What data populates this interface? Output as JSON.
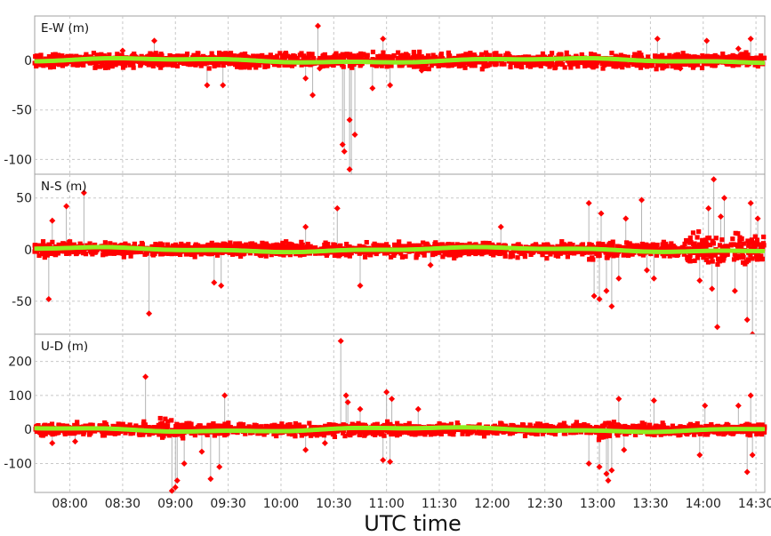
{
  "chart_data": {
    "type": "scatter",
    "xlabel": "UTC time",
    "x_ticks": [
      "08:00",
      "08:30",
      "09:00",
      "09:30",
      "10:00",
      "10:30",
      "11:00",
      "11:30",
      "12:00",
      "12:30",
      "13:00",
      "13:30",
      "14:00",
      "14:30"
    ],
    "x_range": [
      "07:40",
      "14:35"
    ],
    "grid": true,
    "colors": {
      "error_points": "#ff0000",
      "mean_line": "#90ee20",
      "spikes": "#b4b4b4",
      "frame": "#a0a0a0"
    },
    "panels": [
      {
        "label": "E-W (m)",
        "ylim": [
          -115,
          45
        ],
        "y_ticks": [
          "0",
          "-50",
          "-100"
        ],
        "band": 10,
        "spikes": [
          {
            "t": "08:30",
            "v": 10
          },
          {
            "t": "08:48",
            "v": 20
          },
          {
            "t": "09:18",
            "v": -25
          },
          {
            "t": "09:27",
            "v": -25
          },
          {
            "t": "10:14",
            "v": -18
          },
          {
            "t": "10:18",
            "v": -35
          },
          {
            "t": "10:21",
            "v": 35
          },
          {
            "t": "10:22",
            "v": -8
          },
          {
            "t": "10:35",
            "v": -85
          },
          {
            "t": "10:36",
            "v": -92
          },
          {
            "t": "10:39",
            "v": -60
          },
          {
            "t": "10:39",
            "v": -110
          },
          {
            "t": "10:40",
            "v": -118
          },
          {
            "t": "10:42",
            "v": -75
          },
          {
            "t": "10:52",
            "v": -28
          },
          {
            "t": "10:58",
            "v": 22
          },
          {
            "t": "11:02",
            "v": -25
          },
          {
            "t": "11:20",
            "v": -10
          },
          {
            "t": "13:34",
            "v": 22
          },
          {
            "t": "13:47",
            "v": -8
          },
          {
            "t": "14:02",
            "v": 20
          },
          {
            "t": "14:20",
            "v": 12
          },
          {
            "t": "14:27",
            "v": 22
          }
        ]
      },
      {
        "label": "N-S (m)",
        "ylim": [
          -82,
          73
        ],
        "y_ticks": [
          "50",
          "0",
          "-50"
        ],
        "band": 9,
        "spikes": [
          {
            "t": "07:48",
            "v": -48
          },
          {
            "t": "07:50",
            "v": 28
          },
          {
            "t": "07:58",
            "v": 42
          },
          {
            "t": "08:08",
            "v": 55
          },
          {
            "t": "08:45",
            "v": -62
          },
          {
            "t": "09:22",
            "v": -32
          },
          {
            "t": "09:26",
            "v": -35
          },
          {
            "t": "10:14",
            "v": 22
          },
          {
            "t": "10:32",
            "v": 40
          },
          {
            "t": "10:45",
            "v": -35
          },
          {
            "t": "11:25",
            "v": -15
          },
          {
            "t": "12:05",
            "v": 22
          },
          {
            "t": "12:55",
            "v": 45
          },
          {
            "t": "12:58",
            "v": -45
          },
          {
            "t": "13:01",
            "v": -48
          },
          {
            "t": "13:02",
            "v": 35
          },
          {
            "t": "13:05",
            "v": -40
          },
          {
            "t": "13:08",
            "v": -55
          },
          {
            "t": "13:12",
            "v": -28
          },
          {
            "t": "13:16",
            "v": 30
          },
          {
            "t": "13:25",
            "v": 48
          },
          {
            "t": "13:28",
            "v": -20
          },
          {
            "t": "13:32",
            "v": -28
          },
          {
            "t": "13:58",
            "v": -30
          },
          {
            "t": "14:03",
            "v": 40
          },
          {
            "t": "14:05",
            "v": -38
          },
          {
            "t": "14:06",
            "v": 68
          },
          {
            "t": "14:08",
            "v": -75
          },
          {
            "t": "14:10",
            "v": 32
          },
          {
            "t": "14:12",
            "v": 50
          },
          {
            "t": "14:18",
            "v": -40
          },
          {
            "t": "14:25",
            "v": -68
          },
          {
            "t": "14:27",
            "v": 45
          },
          {
            "t": "14:28",
            "v": -82
          },
          {
            "t": "14:31",
            "v": 30
          }
        ]
      },
      {
        "label": "U-D (m)",
        "ylim": [
          -185,
          280
        ],
        "y_ticks": [
          "200",
          "100",
          "0",
          "-100"
        ],
        "band": 24,
        "spikes": [
          {
            "t": "07:50",
            "v": -40
          },
          {
            "t": "08:03",
            "v": -35
          },
          {
            "t": "08:43",
            "v": 155
          },
          {
            "t": "08:58",
            "v": -180
          },
          {
            "t": "09:00",
            "v": -170
          },
          {
            "t": "09:01",
            "v": -150
          },
          {
            "t": "09:05",
            "v": -100
          },
          {
            "t": "09:15",
            "v": -65
          },
          {
            "t": "09:20",
            "v": -145
          },
          {
            "t": "09:25",
            "v": -110
          },
          {
            "t": "09:28",
            "v": 100
          },
          {
            "t": "10:14",
            "v": -60
          },
          {
            "t": "10:25",
            "v": -40
          },
          {
            "t": "10:34",
            "v": 260
          },
          {
            "t": "10:37",
            "v": 100
          },
          {
            "t": "10:38",
            "v": 80
          },
          {
            "t": "10:45",
            "v": 60
          },
          {
            "t": "10:58",
            "v": -90
          },
          {
            "t": "11:00",
            "v": 110
          },
          {
            "t": "11:02",
            "v": -95
          },
          {
            "t": "11:03",
            "v": 90
          },
          {
            "t": "11:18",
            "v": 60
          },
          {
            "t": "12:55",
            "v": -100
          },
          {
            "t": "13:01",
            "v": -110
          },
          {
            "t": "13:05",
            "v": -130
          },
          {
            "t": "13:06",
            "v": -150
          },
          {
            "t": "13:08",
            "v": -120
          },
          {
            "t": "13:12",
            "v": 90
          },
          {
            "t": "13:15",
            "v": -60
          },
          {
            "t": "13:32",
            "v": 85
          },
          {
            "t": "13:58",
            "v": -75
          },
          {
            "t": "14:01",
            "v": 70
          },
          {
            "t": "14:20",
            "v": 70
          },
          {
            "t": "14:25",
            "v": -125
          },
          {
            "t": "14:27",
            "v": 100
          },
          {
            "t": "14:28",
            "v": -75
          }
        ]
      }
    ]
  }
}
